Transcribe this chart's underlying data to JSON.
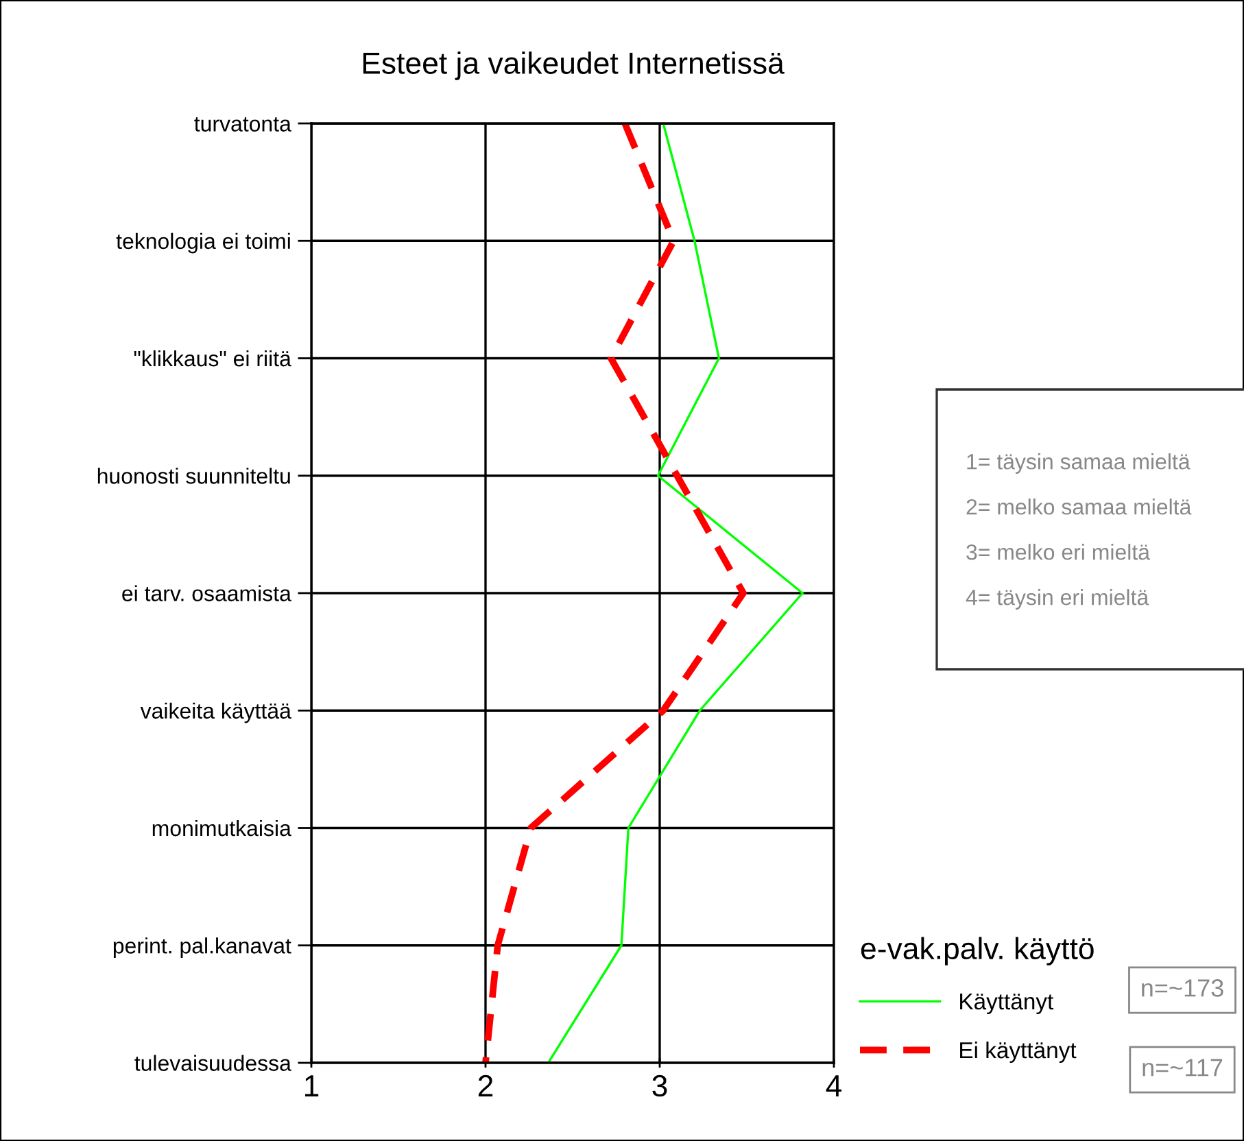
{
  "chart_data": {
    "type": "line",
    "orientation": "horizontal",
    "title": "Esteet ja vaikeudet Internetissä",
    "categories": [
      "turvatonta",
      "teknologia ei toimi",
      "\"klikkaus\" ei riitä",
      "huonosti suunniteltu",
      "ei tarv. osaamista",
      "vaikeita käyttää",
      "monimutkaisia",
      "perint. pal.kanavat",
      "tulevaisuudessa"
    ],
    "series": [
      {
        "name": "Käyttänyt",
        "color": "#00ff00",
        "line_style": "solid",
        "values": [
          3.02,
          3.2,
          3.34,
          2.99,
          3.82,
          3.23,
          2.82,
          2.78,
          2.36
        ]
      },
      {
        "name": "Ei käyttänyt",
        "color": "#ff0000",
        "line_style": "dashed",
        "values": [
          2.8,
          3.08,
          2.72,
          3.1,
          3.48,
          3.02,
          2.26,
          2.07,
          2.0
        ]
      }
    ],
    "xlim": [
      1,
      4
    ],
    "xticks": [
      1,
      2,
      3,
      4
    ],
    "grid": true,
    "legend": "bottom right",
    "legend_title": "e-vak.palv. käyttö",
    "marker": "none",
    "annotations": [
      "1= täysin samaa mieltä",
      "2= melko samaa mieltä",
      "3= melko eri mieltä",
      "4= täysin eri mieltä",
      "n=~173",
      "n=~117"
    ]
  }
}
